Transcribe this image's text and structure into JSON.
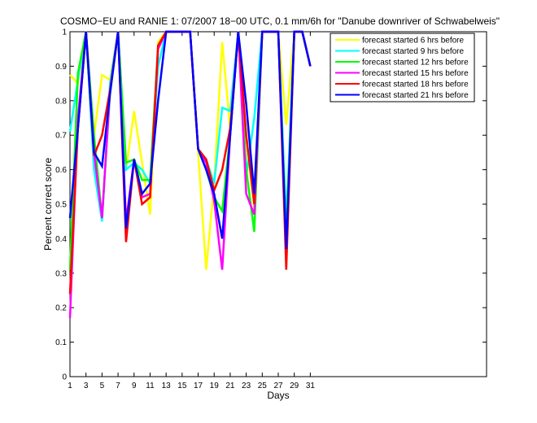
{
  "chart_data": {
    "type": "line",
    "title": "COSMO−EU and RANIE 1: 07/2007 18−00 UTC, 0.1 mm/6h for \"Danube downriver of Schwabelweis\"",
    "xlabel": "Days",
    "ylabel": "Percent correct score",
    "xlim": [
      1,
      53
    ],
    "ylim": [
      0,
      1
    ],
    "xticks": [
      1,
      3,
      5,
      7,
      9,
      11,
      13,
      15,
      17,
      19,
      21,
      23,
      25,
      27,
      29,
      31
    ],
    "yticks": [
      0,
      0.1,
      0.2,
      0.3,
      0.4,
      0.5,
      0.6,
      0.7,
      0.8,
      0.9,
      1
    ],
    "legend_position": "top-right",
    "x": [
      1,
      2,
      3,
      4,
      5,
      6,
      7,
      8,
      9,
      10,
      11,
      12,
      13,
      14,
      15,
      16,
      17,
      18,
      19,
      20,
      21,
      22,
      23,
      24,
      25,
      26,
      27,
      28,
      29,
      30,
      31
    ],
    "series": [
      {
        "name": "forecast started 6 hrs before",
        "color": "#ffff00",
        "values": [
          0.875,
          0.85,
          1.0,
          0.7,
          0.875,
          0.86,
          1.0,
          0.6,
          0.77,
          0.62,
          0.47,
          0.97,
          1.0,
          1.0,
          1.0,
          1.0,
          0.65,
          0.31,
          0.56,
          0.97,
          0.72,
          1.0,
          0.69,
          0.49,
          1.0,
          1.0,
          1.0,
          0.73,
          1.0,
          1.0,
          0.9
        ]
      },
      {
        "name": "forecast started 9 hrs before",
        "color": "#00ffff",
        "values": [
          0.71,
          0.86,
          1.0,
          0.6,
          0.45,
          0.85,
          1.0,
          0.6,
          0.62,
          0.6,
          0.56,
          0.9,
          1.0,
          1.0,
          1.0,
          1.0,
          0.66,
          0.63,
          0.56,
          0.78,
          0.77,
          1.0,
          0.58,
          0.75,
          1.0,
          1.0,
          1.0,
          0.45,
          1.0,
          1.0,
          0.9
        ]
      },
      {
        "name": "forecast started 12 hrs before",
        "color": "#00ff00",
        "values": [
          0.31,
          0.88,
          1.0,
          0.7,
          0.46,
          0.82,
          1.0,
          0.62,
          0.63,
          0.57,
          0.57,
          0.96,
          1.0,
          1.0,
          1.0,
          1.0,
          0.66,
          0.6,
          0.52,
          0.48,
          0.7,
          1.0,
          0.6,
          0.42,
          1.0,
          1.0,
          1.0,
          0.41,
          1.0,
          1.0,
          0.9
        ]
      },
      {
        "name": "forecast started 15 hrs before",
        "color": "#ff00ff",
        "values": [
          0.17,
          0.75,
          1.0,
          0.65,
          0.46,
          0.83,
          1.0,
          0.45,
          0.63,
          0.52,
          0.53,
          0.95,
          1.0,
          1.0,
          1.0,
          1.0,
          0.66,
          0.62,
          0.51,
          0.31,
          0.7,
          1.0,
          0.53,
          0.47,
          1.0,
          1.0,
          1.0,
          0.36,
          1.0,
          1.0,
          0.9
        ]
      },
      {
        "name": "forecast started 18 hrs before",
        "color": "#ff0000",
        "values": [
          0.24,
          0.72,
          1.0,
          0.64,
          0.7,
          0.83,
          1.0,
          0.39,
          0.63,
          0.5,
          0.52,
          0.96,
          1.0,
          1.0,
          1.0,
          1.0,
          0.66,
          0.63,
          0.54,
          0.6,
          0.72,
          1.0,
          0.7,
          0.5,
          1.0,
          1.0,
          1.0,
          0.31,
          1.0,
          1.0,
          0.9
        ]
      },
      {
        "name": "forecast started 21 hrs before",
        "color": "#0000ff",
        "values": [
          0.46,
          0.72,
          1.0,
          0.65,
          0.61,
          0.82,
          1.0,
          0.43,
          0.63,
          0.53,
          0.56,
          0.8,
          1.0,
          1.0,
          1.0,
          1.0,
          0.66,
          0.6,
          0.53,
          0.4,
          0.7,
          1.0,
          0.79,
          0.53,
          1.0,
          1.0,
          1.0,
          0.37,
          1.0,
          1.0,
          0.9
        ]
      }
    ]
  }
}
